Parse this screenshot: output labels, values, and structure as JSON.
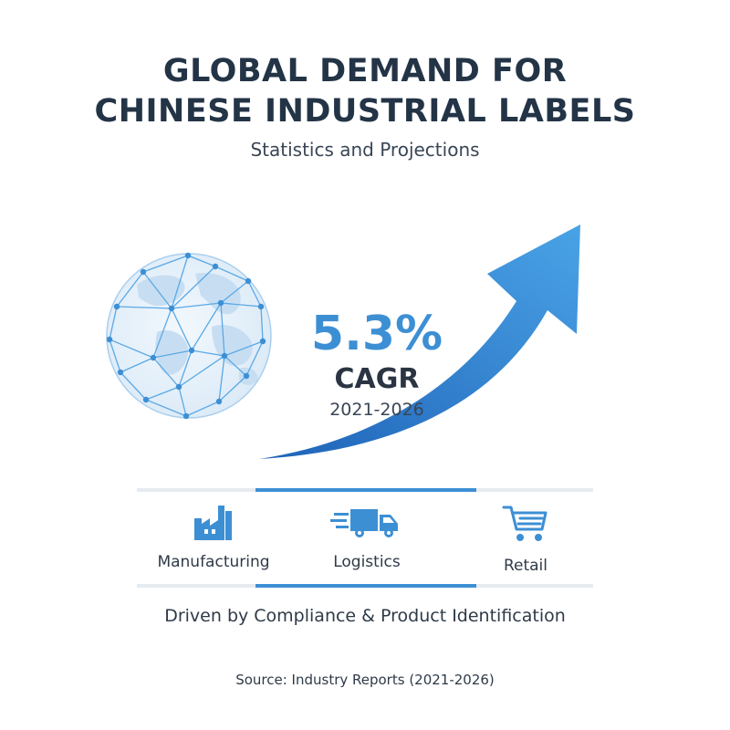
{
  "header": {
    "title_line1": "GLOBAL DEMAND FOR",
    "title_line2": "CHINESE INDUSTRIAL LABELS",
    "subtitle": "Statistics and Projections"
  },
  "stat": {
    "value": "5.3%",
    "label": "CAGR",
    "period": "2021-2026"
  },
  "sectors": [
    {
      "label": "Manufacturing",
      "icon": "factory-icon"
    },
    {
      "label": "Logistics",
      "icon": "delivery-truck-icon"
    },
    {
      "label": "Retail",
      "icon": "shopping-cart-icon"
    }
  ],
  "footer": {
    "driven": "Driven by Compliance & Product Identification",
    "source": "Source: Industry Reports (2021-2026)"
  },
  "colors": {
    "accent": "#3d8fd4",
    "title": "#243447",
    "text": "#2f3a48"
  }
}
